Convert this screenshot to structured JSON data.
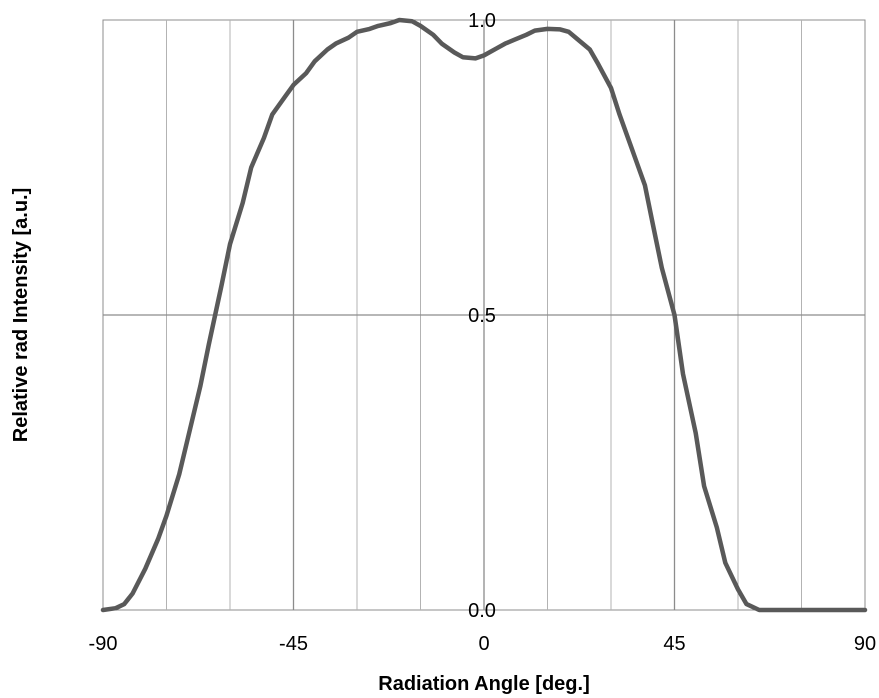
{
  "chart_data": {
    "type": "line",
    "title": "",
    "xlabel": "Radiation Angle [deg.]",
    "ylabel": "Relative rad Intensity [a.u.]",
    "xlim": [
      -90,
      90
    ],
    "ylim": [
      0,
      1
    ],
    "xticks": [
      -90,
      -45,
      0,
      45,
      90
    ],
    "xtick_labels": [
      "-90",
      "-45",
      "0",
      "45",
      "90"
    ],
    "yticks": [
      0,
      0.5,
      1
    ],
    "ytick_labels": [
      "0.0",
      "0.5",
      "1.0"
    ],
    "x_minor_gridlines": [
      -75,
      -60,
      -30,
      -15,
      15,
      30,
      60,
      75
    ],
    "grid": true,
    "line_color": "#595959",
    "grid_color": "#999999",
    "series": [
      {
        "x": [
          -90,
          -87,
          -85,
          -83,
          -80,
          -77,
          -75,
          -72,
          -70,
          -67,
          -65,
          -62,
          -60,
          -57,
          -55,
          -52,
          -50,
          -47,
          -45,
          -42,
          -40,
          -37,
          -35,
          -32,
          -30,
          -27,
          -25,
          -22,
          -20,
          -17,
          -15,
          -12,
          -10,
          -7,
          -5,
          -2,
          0,
          3,
          5,
          7,
          10,
          12,
          15,
          18,
          20,
          22,
          25,
          27,
          30,
          32,
          35,
          38,
          40,
          42,
          45,
          47,
          50,
          52,
          55,
          57,
          60,
          62,
          65,
          67,
          70,
          72,
          75,
          77,
          80,
          82,
          85,
          87,
          90
        ],
        "y": [
          0.0,
          0.003,
          0.01,
          0.028,
          0.07,
          0.12,
          0.16,
          0.23,
          0.29,
          0.38,
          0.45,
          0.55,
          0.62,
          0.69,
          0.75,
          0.8,
          0.84,
          0.87,
          0.89,
          0.91,
          0.93,
          0.95,
          0.96,
          0.97,
          0.98,
          0.985,
          0.99,
          0.995,
          1.0,
          0.998,
          0.99,
          0.975,
          0.96,
          0.945,
          0.937,
          0.935,
          0.94,
          0.952,
          0.96,
          0.966,
          0.975,
          0.982,
          0.985,
          0.984,
          0.98,
          0.968,
          0.95,
          0.925,
          0.885,
          0.84,
          0.78,
          0.72,
          0.65,
          0.58,
          0.5,
          0.4,
          0.3,
          0.21,
          0.14,
          0.08,
          0.035,
          0.01,
          0.0,
          0.0,
          0.0,
          0.0,
          0.0,
          0.0,
          0.0,
          0.0,
          0.0,
          0.0,
          0.0
        ]
      }
    ]
  }
}
